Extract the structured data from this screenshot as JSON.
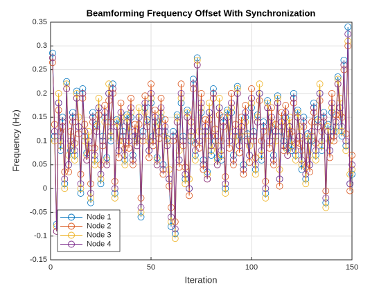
{
  "chart_data": {
    "type": "line",
    "title": "Beamforming Frequency Offset With Synchronization",
    "xlabel": "Iteration",
    "ylabel": "Frequency (Hz)",
    "x": [
      1,
      2,
      3,
      4,
      5,
      6,
      7,
      8,
      9,
      10,
      11,
      12,
      13,
      14,
      15,
      16,
      17,
      18,
      19,
      20,
      21,
      22,
      23,
      24,
      25,
      26,
      27,
      28,
      29,
      30,
      31,
      32,
      33,
      34,
      35,
      36,
      37,
      38,
      39,
      40,
      41,
      42,
      43,
      44,
      45,
      46,
      47,
      48,
      49,
      50,
      51,
      52,
      53,
      54,
      55,
      56,
      57,
      58,
      59,
      60,
      61,
      62,
      63,
      64,
      65,
      66,
      67,
      68,
      69,
      70,
      71,
      72,
      73,
      74,
      75,
      76,
      77,
      78,
      79,
      80,
      81,
      82,
      83,
      84,
      85,
      86,
      87,
      88,
      89,
      90,
      91,
      92,
      93,
      94,
      95,
      96,
      97,
      98,
      99,
      100,
      101,
      102,
      103,
      104,
      105,
      106,
      107,
      108,
      109,
      110,
      111,
      112,
      113,
      114,
      115,
      116,
      117,
      118,
      119,
      120,
      121,
      122,
      123,
      124,
      125,
      126,
      127,
      128,
      129,
      130,
      131,
      132,
      133,
      134,
      135,
      136,
      137,
      138,
      139,
      140,
      141,
      142,
      143,
      144,
      145,
      146,
      147,
      148,
      149,
      150
    ],
    "series": [
      {
        "name": "Node 1",
        "color": "#0072BD",
        "values": [
          0.285,
          0.11,
          -0.075,
          0.18,
          0.08,
          0.15,
          0.01,
          0.225,
          0.05,
          0.08,
          0.16,
          0.07,
          0.205,
          0.13,
          -0.01,
          0.21,
          0.11,
          0.075,
          0.1,
          -0.03,
          0.16,
          0.06,
          0.135,
          0.17,
          0.01,
          0.11,
          0.15,
          0.065,
          0.2,
          0.1,
          0.22,
          -0.01,
          0.145,
          0.08,
          0.14,
          0.12,
          0.06,
          0.155,
          0.1,
          0.15,
          0.07,
          0.11,
          0.105,
          0.15,
          -0.06,
          0.12,
          0.17,
          0.145,
          0.08,
          0.18,
          0.11,
          0.14,
          0.065,
          0.12,
          0.15,
          0.05,
          0.12,
          0.105,
          0.02,
          -0.08,
          0.12,
          -0.095,
          0.155,
          0.06,
          0.18,
          0.11,
          0.02,
          0.165,
          0.0,
          0.1,
          0.23,
          0.07,
          0.275,
          0.1,
          0.16,
          0.06,
          0.12,
          0.035,
          0.16,
          0.07,
          0.21,
          0.1,
          0.065,
          0.17,
          0.06,
          0.15,
          0.0,
          0.165,
          0.1,
          0.16,
          0.07,
          0.11,
          0.215,
          0.09,
          0.11,
          0.05,
          0.15,
          0.115,
          0.07,
          0.17,
          0.12,
          0.04,
          0.155,
          0.2,
          0.06,
          0.14,
          -0.01,
          0.185,
          0.1,
          0.13,
          0.07,
          0.11,
          0.195,
          0.02,
          0.12,
          0.1,
          0.15,
          0.085,
          0.13,
          0.08,
          0.2,
          0.07,
          0.165,
          0.11,
          0.04,
          0.15,
          0.02,
          0.115,
          0.05,
          0.1,
          0.18,
          0.07,
          0.145,
          0.2,
          0.08,
          0.16,
          -0.03,
          0.135,
          0.08,
          0.16,
          0.12,
          0.13,
          0.235,
          0.17,
          0.11,
          0.27,
          0.09,
          0.34,
          0.01,
          0.03
        ]
      },
      {
        "name": "Node 2",
        "color": "#D95319",
        "values": [
          0.265,
          0.135,
          -0.09,
          0.165,
          0.12,
          0.13,
          0.035,
          0.21,
          0.035,
          0.12,
          0.14,
          0.095,
          0.19,
          0.115,
          0.03,
          0.19,
          0.135,
          0.06,
          0.085,
          0.01,
          0.14,
          0.085,
          0.12,
          0.155,
          0.05,
          0.09,
          0.175,
          0.05,
          0.185,
          0.14,
          0.2,
          0.015,
          0.13,
          0.065,
          0.18,
          0.1,
          0.085,
          0.14,
          0.085,
          0.19,
          0.05,
          0.135,
          0.09,
          0.135,
          -0.02,
          0.1,
          0.195,
          0.13,
          0.065,
          0.22,
          0.09,
          0.165,
          0.05,
          0.105,
          0.19,
          0.03,
          0.145,
          0.09,
          0.005,
          -0.04,
          0.1,
          -0.07,
          0.14,
          0.045,
          0.22,
          0.09,
          0.045,
          0.15,
          -0.015,
          0.14,
          0.21,
          0.095,
          0.26,
          0.085,
          0.2,
          0.04,
          0.145,
          0.02,
          0.145,
          0.11,
          0.19,
          0.125,
          0.05,
          0.155,
          0.1,
          0.13,
          0.025,
          0.15,
          0.085,
          0.2,
          0.05,
          0.135,
          0.2,
          0.075,
          0.15,
          0.03,
          0.175,
          0.1,
          0.055,
          0.21,
          0.1,
          0.065,
          0.14,
          0.185,
          0.1,
          0.12,
          0.015,
          0.17,
          0.085,
          0.17,
          0.05,
          0.135,
          0.18,
          0.005,
          0.16,
          0.08,
          0.175,
          0.07,
          0.115,
          0.12,
          0.18,
          0.095,
          0.15,
          0.095,
          0.08,
          0.13,
          0.045,
          0.1,
          0.035,
          0.14,
          0.16,
          0.095,
          0.13,
          0.185,
          0.12,
          0.14,
          -0.005,
          0.12,
          0.065,
          0.2,
          0.1,
          0.155,
          0.22,
          0.155,
          0.15,
          0.25,
          0.115,
          0.3,
          -0.005,
          0.07
        ]
      },
      {
        "name": "Node 3",
        "color": "#EDB120",
        "values": [
          0.275,
          0.1,
          -0.08,
          0.2,
          0.09,
          0.14,
          0.0,
          0.22,
          0.07,
          0.09,
          0.15,
          0.06,
          0.2,
          0.15,
          0.0,
          0.2,
          0.1,
          0.07,
          0.12,
          -0.02,
          0.15,
          0.05,
          0.13,
          0.19,
          0.02,
          0.1,
          0.14,
          0.06,
          0.22,
          0.11,
          0.21,
          -0.02,
          0.14,
          0.1,
          0.15,
          0.11,
          0.05,
          0.15,
          0.12,
          0.16,
          0.06,
          0.1,
          0.1,
          0.17,
          -0.05,
          0.11,
          0.16,
          0.14,
          0.1,
          0.19,
          0.1,
          0.13,
          0.06,
          0.14,
          0.16,
          0.04,
          0.11,
          0.1,
          0.04,
          -0.07,
          0.11,
          -0.105,
          0.15,
          0.08,
          0.19,
          0.1,
          0.01,
          0.16,
          0.02,
          0.11,
          0.22,
          0.06,
          0.27,
          0.12,
          0.17,
          0.05,
          0.11,
          0.03,
          0.18,
          0.08,
          0.2,
          0.09,
          0.06,
          0.19,
          0.07,
          0.14,
          -0.01,
          0.16,
          0.12,
          0.17,
          0.06,
          0.1,
          0.21,
          0.11,
          0.12,
          0.04,
          0.14,
          0.11,
          0.09,
          0.18,
          0.11,
          0.03,
          0.15,
          0.22,
          0.07,
          0.13,
          -0.02,
          0.18,
          0.12,
          0.14,
          0.06,
          0.1,
          0.19,
          0.04,
          0.13,
          0.09,
          0.14,
          0.08,
          0.15,
          0.09,
          0.19,
          0.06,
          0.16,
          0.13,
          0.05,
          0.14,
          0.01,
          0.11,
          0.07,
          0.11,
          0.17,
          0.06,
          0.14,
          0.22,
          0.09,
          0.15,
          -0.04,
          0.13,
          0.1,
          0.17,
          0.11,
          0.12,
          0.23,
          0.19,
          0.12,
          0.26,
          0.08,
          0.31,
          0.03,
          0.04
        ]
      },
      {
        "name": "Node 4",
        "color": "#7E2F8E",
        "values": [
          0.275,
          0.12,
          -0.09,
          0.18,
          0.1,
          0.14,
          0.02,
          0.21,
          0.05,
          0.1,
          0.15,
          0.08,
          0.19,
          0.13,
          0.01,
          0.2,
          0.12,
          0.06,
          0.1,
          -0.01,
          0.15,
          0.07,
          0.12,
          0.17,
          0.03,
          0.1,
          0.16,
          0.05,
          0.2,
          0.12,
          0.21,
          0.0,
          0.13,
          0.08,
          0.16,
          0.11,
          0.07,
          0.14,
          0.1,
          0.17,
          0.06,
          0.12,
          0.09,
          0.15,
          -0.04,
          0.11,
          0.18,
          0.13,
          0.08,
          0.2,
          0.1,
          0.15,
          0.05,
          0.12,
          0.17,
          0.04,
          0.13,
          0.09,
          0.02,
          -0.06,
          0.11,
          -0.085,
          0.14,
          0.06,
          0.2,
          0.1,
          0.03,
          0.15,
          0.0,
          0.12,
          0.22,
          0.08,
          0.26,
          0.1,
          0.18,
          0.05,
          0.13,
          0.02,
          0.16,
          0.09,
          0.2,
          0.11,
          0.05,
          0.17,
          0.08,
          0.14,
          0.01,
          0.15,
          0.1,
          0.18,
          0.06,
          0.12,
          0.2,
          0.09,
          0.13,
          0.04,
          0.16,
          0.1,
          0.07,
          0.19,
          0.11,
          0.05,
          0.14,
          0.2,
          0.08,
          0.13,
          0.0,
          0.17,
          0.1,
          0.15,
          0.06,
          0.12,
          0.18,
          0.02,
          0.14,
          0.09,
          0.16,
          0.07,
          0.13,
          0.1,
          0.19,
          0.08,
          0.15,
          0.11,
          0.06,
          0.14,
          0.03,
          0.1,
          0.05,
          0.12,
          0.17,
          0.08,
          0.13,
          0.2,
          0.1,
          0.15,
          -0.02,
          0.12,
          0.08,
          0.18,
          0.11,
          0.14,
          0.22,
          0.17,
          0.13,
          0.26,
          0.1,
          0.325,
          0.01,
          0.05
        ]
      }
    ],
    "xlim": [
      0,
      150
    ],
    "xticks": [
      0,
      50,
      100,
      150
    ],
    "ylim": [
      -0.15,
      0.35
    ],
    "yticks": [
      -0.15,
      -0.1,
      -0.05,
      0,
      0.05,
      0.1,
      0.15,
      0.2,
      0.25,
      0.3,
      0.35
    ],
    "grid": true,
    "legend": "southwest",
    "marker": "circle"
  }
}
